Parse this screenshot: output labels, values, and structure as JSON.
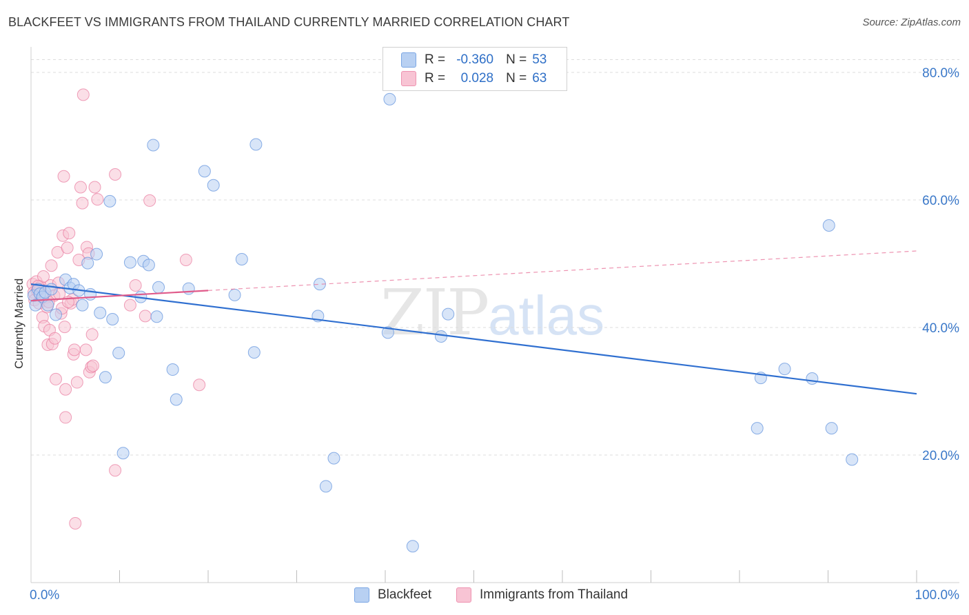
{
  "title": "BLACKFEET VS IMMIGRANTS FROM THAILAND CURRENTLY MARRIED CORRELATION CHART",
  "source": "Source: ZipAtlas.com",
  "watermark": {
    "zip": "ZIP",
    "atlas": "atlas"
  },
  "legend": {
    "r_label": "R =",
    "n_label": "N =",
    "rows": [
      {
        "r": "-0.360",
        "n": "53",
        "color": "#5b8fdc"
      },
      {
        "r": "0.028",
        "n": "63",
        "color": "#e8779c"
      }
    ]
  },
  "bottom_legend": [
    "Blackfeet",
    "Immigrants from Thailand"
  ],
  "chart_data": {
    "type": "scatter",
    "title": "BLACKFEET VS IMMIGRANTS FROM THAILAND CURRENTLY MARRIED CORRELATION CHART",
    "xlabel": "",
    "ylabel": "Currently Married",
    "xlim": [
      0,
      100
    ],
    "ylim": [
      0,
      84
    ],
    "x_tick_labels": [
      "0.0%",
      "100.0%"
    ],
    "y_ticks": [
      20,
      40,
      60,
      80
    ],
    "y_tick_labels": [
      "20.0%",
      "40.0%",
      "60.0%",
      "80.0%"
    ],
    "grid": true,
    "series": [
      {
        "name": "Blackfeet",
        "color": "#5b8fdc",
        "fill": "#b8d0f2",
        "r": -0.36,
        "n": 53,
        "trend": {
          "x": [
            0,
            100
          ],
          "y": [
            46.8,
            29.6
          ],
          "style": "solid"
        },
        "points": [
          [
            0.3,
            45.0
          ],
          [
            0.5,
            43.5
          ],
          [
            0.8,
            46.0
          ],
          [
            1.0,
            45.3
          ],
          [
            1.3,
            44.8
          ],
          [
            1.6,
            45.5
          ],
          [
            1.9,
            43.5
          ],
          [
            2.3,
            46.0
          ],
          [
            2.8,
            42.0
          ],
          [
            3.9,
            47.5
          ],
          [
            4.4,
            46.2
          ],
          [
            4.8,
            46.8
          ],
          [
            5.4,
            45.8
          ],
          [
            5.8,
            43.5
          ],
          [
            6.4,
            50.1
          ],
          [
            6.7,
            45.2
          ],
          [
            7.4,
            51.5
          ],
          [
            7.8,
            42.3
          ],
          [
            8.4,
            32.2
          ],
          [
            8.9,
            59.8
          ],
          [
            9.2,
            41.3
          ],
          [
            9.9,
            36.0
          ],
          [
            10.4,
            20.3
          ],
          [
            11.2,
            50.2
          ],
          [
            12.4,
            44.8
          ],
          [
            12.7,
            50.4
          ],
          [
            13.3,
            49.8
          ],
          [
            13.8,
            68.6
          ],
          [
            14.2,
            41.7
          ],
          [
            14.4,
            46.3
          ],
          [
            16.0,
            33.4
          ],
          [
            16.4,
            28.7
          ],
          [
            17.8,
            46.1
          ],
          [
            19.6,
            64.5
          ],
          [
            20.6,
            62.3
          ],
          [
            23.0,
            45.1
          ],
          [
            23.8,
            50.7
          ],
          [
            25.2,
            36.1
          ],
          [
            25.4,
            68.7
          ],
          [
            32.4,
            41.8
          ],
          [
            32.6,
            46.8
          ],
          [
            34.2,
            19.5
          ],
          [
            33.3,
            15.1
          ],
          [
            40.3,
            39.2
          ],
          [
            40.5,
            75.8
          ],
          [
            43.1,
            5.7
          ],
          [
            46.3,
            38.6
          ],
          [
            47.1,
            42.1
          ],
          [
            82.0,
            24.2
          ],
          [
            82.4,
            32.1
          ],
          [
            85.1,
            33.5
          ],
          [
            88.2,
            32.0
          ],
          [
            90.4,
            24.2
          ],
          [
            90.1,
            56.0
          ],
          [
            92.7,
            19.3
          ]
        ]
      },
      {
        "name": "Immigrants from Thailand",
        "color": "#e8779c",
        "fill": "#f8c4d4",
        "r": 0.028,
        "n": 63,
        "trend": {
          "x": [
            0,
            20
          ],
          "y": [
            44.2,
            45.8
          ],
          "style": "solid",
          "extended": {
            "x": [
              20,
              100
            ],
            "y": [
              45.8,
              52.0
            ],
            "style": "dashed"
          }
        },
        "points": [
          [
            0.2,
            46.8
          ],
          [
            0.3,
            45.5
          ],
          [
            0.4,
            44.3
          ],
          [
            0.6,
            47.2
          ],
          [
            0.7,
            45.8
          ],
          [
            0.9,
            43.8
          ],
          [
            1.1,
            46.4
          ],
          [
            1.3,
            41.6
          ],
          [
            1.4,
            48.0
          ],
          [
            1.5,
            40.2
          ],
          [
            1.7,
            44.7
          ],
          [
            1.8,
            43.2
          ],
          [
            1.9,
            37.3
          ],
          [
            2.1,
            39.6
          ],
          [
            2.2,
            46.6
          ],
          [
            2.3,
            49.7
          ],
          [
            2.4,
            37.4
          ],
          [
            2.6,
            45.0
          ],
          [
            2.7,
            38.3
          ],
          [
            2.8,
            31.9
          ],
          [
            3.0,
            51.8
          ],
          [
            3.2,
            45.3
          ],
          [
            3.4,
            42.2
          ],
          [
            3.5,
            43.0
          ],
          [
            3.6,
            54.4
          ],
          [
            3.7,
            63.7
          ],
          [
            3.8,
            40.1
          ],
          [
            3.9,
            30.3
          ],
          [
            3.9,
            25.9
          ],
          [
            4.1,
            52.5
          ],
          [
            4.3,
            54.8
          ],
          [
            4.5,
            43.8
          ],
          [
            4.7,
            44.4
          ],
          [
            4.8,
            35.8
          ],
          [
            4.9,
            36.5
          ],
          [
            5.0,
            9.3
          ],
          [
            5.2,
            31.4
          ],
          [
            5.4,
            50.6
          ],
          [
            5.6,
            62.0
          ],
          [
            5.8,
            59.5
          ],
          [
            5.9,
            76.5
          ],
          [
            6.2,
            36.5
          ],
          [
            6.3,
            52.6
          ],
          [
            6.5,
            51.6
          ],
          [
            6.6,
            33.0
          ],
          [
            6.8,
            33.8
          ],
          [
            6.9,
            38.9
          ],
          [
            7.0,
            34.0
          ],
          [
            7.2,
            62.0
          ],
          [
            7.5,
            60.1
          ],
          [
            9.5,
            64.0
          ],
          [
            9.5,
            17.6
          ],
          [
            11.2,
            43.5
          ],
          [
            11.8,
            46.6
          ],
          [
            12.9,
            41.8
          ],
          [
            13.4,
            59.9
          ],
          [
            17.5,
            50.6
          ],
          [
            19.0,
            31.0
          ],
          [
            1.0,
            46.0
          ],
          [
            2.0,
            44.0
          ],
          [
            3.1,
            47.0
          ],
          [
            4.2,
            44.0
          ],
          [
            0.8,
            46.5
          ]
        ]
      }
    ]
  }
}
